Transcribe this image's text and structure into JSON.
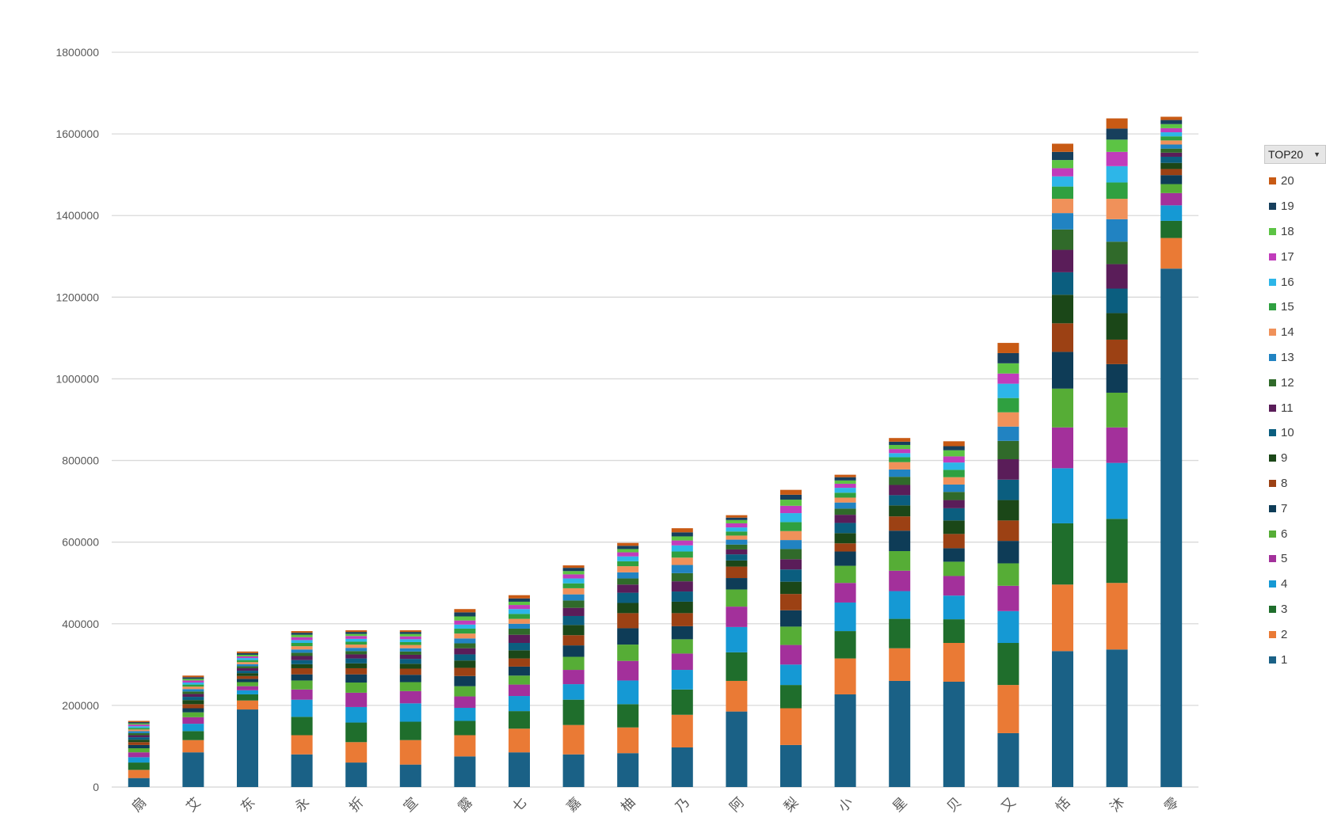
{
  "legend": {
    "title": "TOP20",
    "dropdown_icon": "triangle-down"
  },
  "chart_data": {
    "type": "bar",
    "stacked": true,
    "ylim": [
      0,
      1800000
    ],
    "yticks": [
      0,
      200000,
      400000,
      600000,
      800000,
      1000000,
      1200000,
      1400000,
      1600000,
      1800000
    ],
    "grid": true,
    "legend_position": "right",
    "categories": [
      "扇",
      "艾",
      "东",
      "永",
      "折",
      "宣",
      "露",
      "七",
      "嘉",
      "柚",
      "乃",
      "阿",
      "梨",
      "小",
      "星",
      "贝",
      "又",
      "恬",
      "沐",
      "零"
    ],
    "series": [
      {
        "name": "1",
        "color": "#1a6186",
        "values": [
          22000,
          85000,
          190000,
          80000,
          60000,
          55000,
          75000,
          85000,
          80000,
          83000,
          97000,
          185000,
          103000,
          227000,
          260000,
          258000,
          132000,
          333000,
          337000,
          1270000
        ]
      },
      {
        "name": "2",
        "color": "#ea7a35",
        "values": [
          20000,
          30000,
          22000,
          47000,
          50000,
          60000,
          52000,
          58000,
          72000,
          63000,
          80000,
          75000,
          90000,
          88000,
          80000,
          95000,
          118000,
          163000,
          163000,
          75000
        ]
      },
      {
        "name": "3",
        "color": "#1f6e2c",
        "values": [
          18000,
          22000,
          15000,
          45000,
          48000,
          45000,
          35000,
          43000,
          62000,
          57000,
          62000,
          70000,
          57000,
          67000,
          72000,
          58000,
          103000,
          150000,
          157000,
          42000
        ]
      },
      {
        "name": "4",
        "color": "#1599d4",
        "values": [
          13000,
          18000,
          10000,
          42000,
          38000,
          45000,
          32000,
          37000,
          38000,
          58000,
          48000,
          62000,
          50000,
          70000,
          68000,
          58000,
          78000,
          135000,
          137000,
          38000
        ]
      },
      {
        "name": "5",
        "color": "#a3309b",
        "values": [
          12000,
          16000,
          10000,
          25000,
          35000,
          30000,
          28000,
          28000,
          35000,
          48000,
          40000,
          50000,
          48000,
          48000,
          50000,
          48000,
          62000,
          100000,
          87000,
          30000
        ]
      },
      {
        "name": "6",
        "color": "#56ad36",
        "values": [
          10000,
          12000,
          10000,
          22000,
          25000,
          22000,
          25000,
          22000,
          32000,
          40000,
          35000,
          42000,
          45000,
          42000,
          48000,
          35000,
          55000,
          95000,
          85000,
          22000
        ]
      },
      {
        "name": "7",
        "color": "#0e3c57",
        "values": [
          8000,
          10000,
          8000,
          15000,
          20000,
          18000,
          25000,
          22000,
          28000,
          40000,
          32000,
          28000,
          40000,
          35000,
          50000,
          33000,
          55000,
          90000,
          70000,
          22000
        ]
      },
      {
        "name": "8",
        "color": "#9c4114",
        "values": [
          7000,
          10000,
          7000,
          15000,
          15000,
          15000,
          20000,
          20000,
          25000,
          37000,
          32000,
          28000,
          40000,
          20000,
          35000,
          35000,
          50000,
          70000,
          60000,
          15000
        ]
      },
      {
        "name": "9",
        "color": "#1b4718",
        "values": [
          6000,
          10000,
          7000,
          10000,
          12000,
          12000,
          18000,
          20000,
          25000,
          25000,
          28000,
          15000,
          30000,
          25000,
          27000,
          33000,
          50000,
          70000,
          65000,
          15000
        ]
      },
      {
        "name": "10",
        "color": "#0b5e7f",
        "values": [
          6000,
          8000,
          6000,
          10000,
          12000,
          12000,
          15000,
          18000,
          22000,
          25000,
          25000,
          15000,
          30000,
          25000,
          25000,
          30000,
          50000,
          55000,
          60000,
          15000
        ]
      },
      {
        "name": "11",
        "color": "#5a1d59",
        "values": [
          5000,
          7000,
          6000,
          10000,
          10000,
          10000,
          15000,
          20000,
          20000,
          20000,
          25000,
          12000,
          25000,
          20000,
          25000,
          20000,
          50000,
          55000,
          60000,
          10000
        ]
      },
      {
        "name": "12",
        "color": "#306a2a",
        "values": [
          5000,
          6000,
          5000,
          8000,
          8000,
          8000,
          12000,
          15000,
          18000,
          15000,
          20000,
          12000,
          25000,
          15000,
          20000,
          20000,
          45000,
          50000,
          55000,
          10000
        ]
      },
      {
        "name": "13",
        "color": "#2183c2",
        "values": [
          5000,
          6000,
          5000,
          8000,
          8000,
          8000,
          12000,
          12000,
          15000,
          15000,
          20000,
          12000,
          22000,
          15000,
          18000,
          18000,
          35000,
          40000,
          55000,
          10000
        ]
      },
      {
        "name": "14",
        "color": "#f0915a",
        "values": [
          4000,
          6000,
          5000,
          8000,
          8000,
          8000,
          12000,
          12000,
          15000,
          15000,
          18000,
          10000,
          22000,
          12000,
          18000,
          18000,
          35000,
          35000,
          50000,
          10000
        ]
      },
      {
        "name": "15",
        "color": "#2fa040",
        "values": [
          4000,
          5000,
          5000,
          8000,
          7000,
          7000,
          12000,
          12000,
          12000,
          12000,
          15000,
          10000,
          22000,
          12000,
          12000,
          18000,
          35000,
          30000,
          40000,
          10000
        ]
      },
      {
        "name": "16",
        "color": "#2db6e8",
        "values": [
          4000,
          5000,
          5000,
          7000,
          7000,
          7000,
          10000,
          12000,
          12000,
          12000,
          15000,
          10000,
          22000,
          12000,
          10000,
          18000,
          35000,
          25000,
          40000,
          10000
        ]
      },
      {
        "name": "17",
        "color": "#c13cbb",
        "values": [
          4000,
          5000,
          4000,
          7000,
          7000,
          7000,
          10000,
          10000,
          10000,
          10000,
          12000,
          10000,
          18000,
          10000,
          10000,
          15000,
          25000,
          20000,
          35000,
          10000
        ]
      },
      {
        "name": "18",
        "color": "#5cc444",
        "values": [
          3000,
          4000,
          4000,
          6000,
          5000,
          6000,
          10000,
          8000,
          8000,
          8000,
          10000,
          8000,
          15000,
          8000,
          10000,
          15000,
          25000,
          20000,
          30000,
          10000
        ]
      },
      {
        "name": "19",
        "color": "#173f5c",
        "values": [
          3000,
          4000,
          4000,
          5000,
          5000,
          5000,
          10000,
          8000,
          8000,
          8000,
          10000,
          6000,
          12000,
          8000,
          8000,
          10000,
          25000,
          20000,
          27000,
          10000
        ]
      },
      {
        "name": "20",
        "color": "#c85a14",
        "values": [
          3000,
          4000,
          4000,
          4000,
          4000,
          4000,
          8000,
          8000,
          6000,
          7000,
          10000,
          6000,
          12000,
          6000,
          9000,
          12000,
          25000,
          20000,
          25000,
          8000
        ]
      }
    ]
  }
}
